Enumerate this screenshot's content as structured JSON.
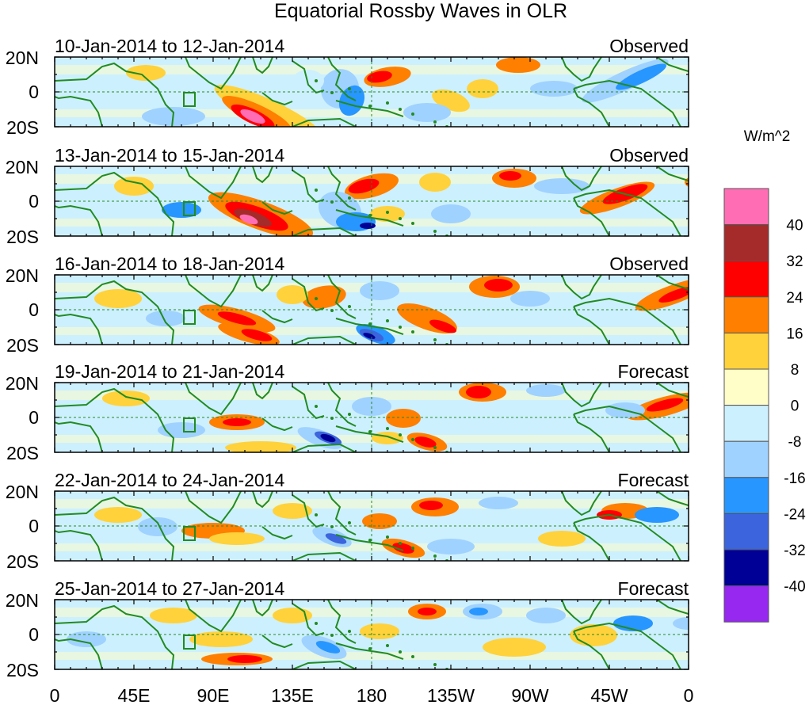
{
  "title": "Equatorial Rossby Waves in OLR",
  "units_label": "W/m^2",
  "colorbar": {
    "labels": [
      "40",
      "32",
      "24",
      "16",
      "8",
      "0",
      "-8",
      "-16",
      "-24",
      "-32",
      "-40"
    ],
    "colors": [
      "#ff6eb4",
      "#a52a2a",
      "#ff0000",
      "#ff7f00",
      "#ffd23c",
      "#fffdc8",
      "#cdf0ff",
      "#a0d2ff",
      "#2896ff",
      "#3c64dc",
      "#000096",
      "#9628f0"
    ]
  },
  "y_ticks": [
    "20N",
    "0",
    "20S"
  ],
  "x_ticks": [
    "0",
    "45E",
    "90E",
    "135E",
    "180",
    "135W",
    "90W",
    "45W",
    "0"
  ],
  "panels": [
    {
      "date_range": "10-Jan-2014 to 12-Jan-2014",
      "status": "Observed"
    },
    {
      "date_range": "13-Jan-2014 to 15-Jan-2014",
      "status": "Observed"
    },
    {
      "date_range": "16-Jan-2014 to 18-Jan-2014",
      "status": "Observed"
    },
    {
      "date_range": "19-Jan-2014 to 21-Jan-2014",
      "status": "Forecast"
    },
    {
      "date_range": "22-Jan-2014 to 24-Jan-2014",
      "status": "Forecast"
    },
    {
      "date_range": "25-Jan-2014 to 27-Jan-2014",
      "status": "Forecast"
    }
  ]
}
